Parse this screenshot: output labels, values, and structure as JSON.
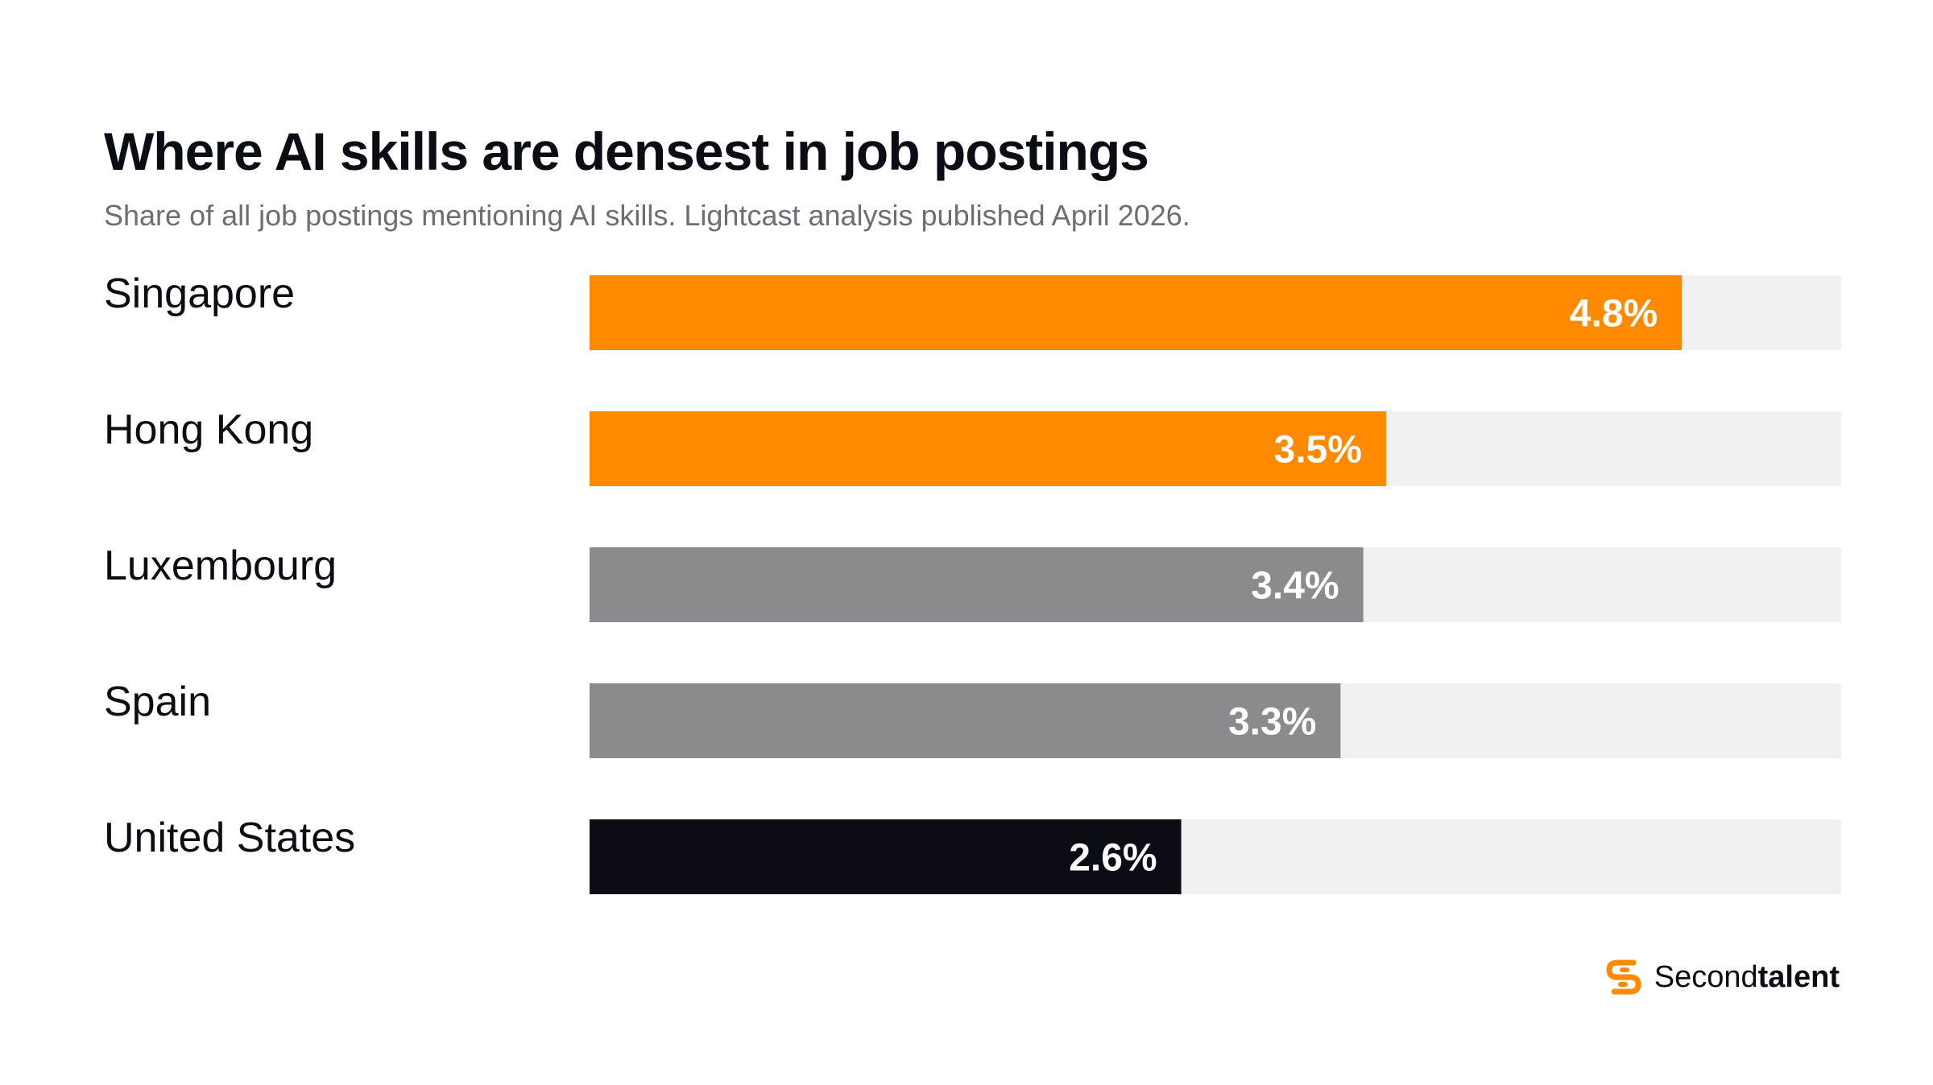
{
  "chart_data": {
    "type": "bar",
    "orientation": "horizontal",
    "title": "Where AI skills are densest in job postings",
    "subtitle": "Share of all job postings mentioning AI skills. Lightcast analysis published April 2026.",
    "xlim": [
      0,
      5.5
    ],
    "grid": false,
    "legend": "none",
    "categories": [
      "Singapore",
      "Hong Kong",
      "Luxembourg",
      "Spain",
      "United States"
    ],
    "values": [
      4.8,
      3.5,
      3.4,
      3.3,
      2.6
    ],
    "value_labels": [
      "4.8%",
      "3.5%",
      "3.4%",
      "3.3%",
      "2.6%"
    ],
    "bar_colors": [
      "#FF8A00",
      "#FF8A00",
      "#8A8B8E",
      "#8A8B8E",
      "#0A0D14"
    ],
    "track_color": "#F0F1F0"
  },
  "brand": {
    "name_regular": "Second",
    "name_bold": "talent",
    "icon": "secondtalent-logo-icon",
    "accent": "#FF8A00"
  }
}
